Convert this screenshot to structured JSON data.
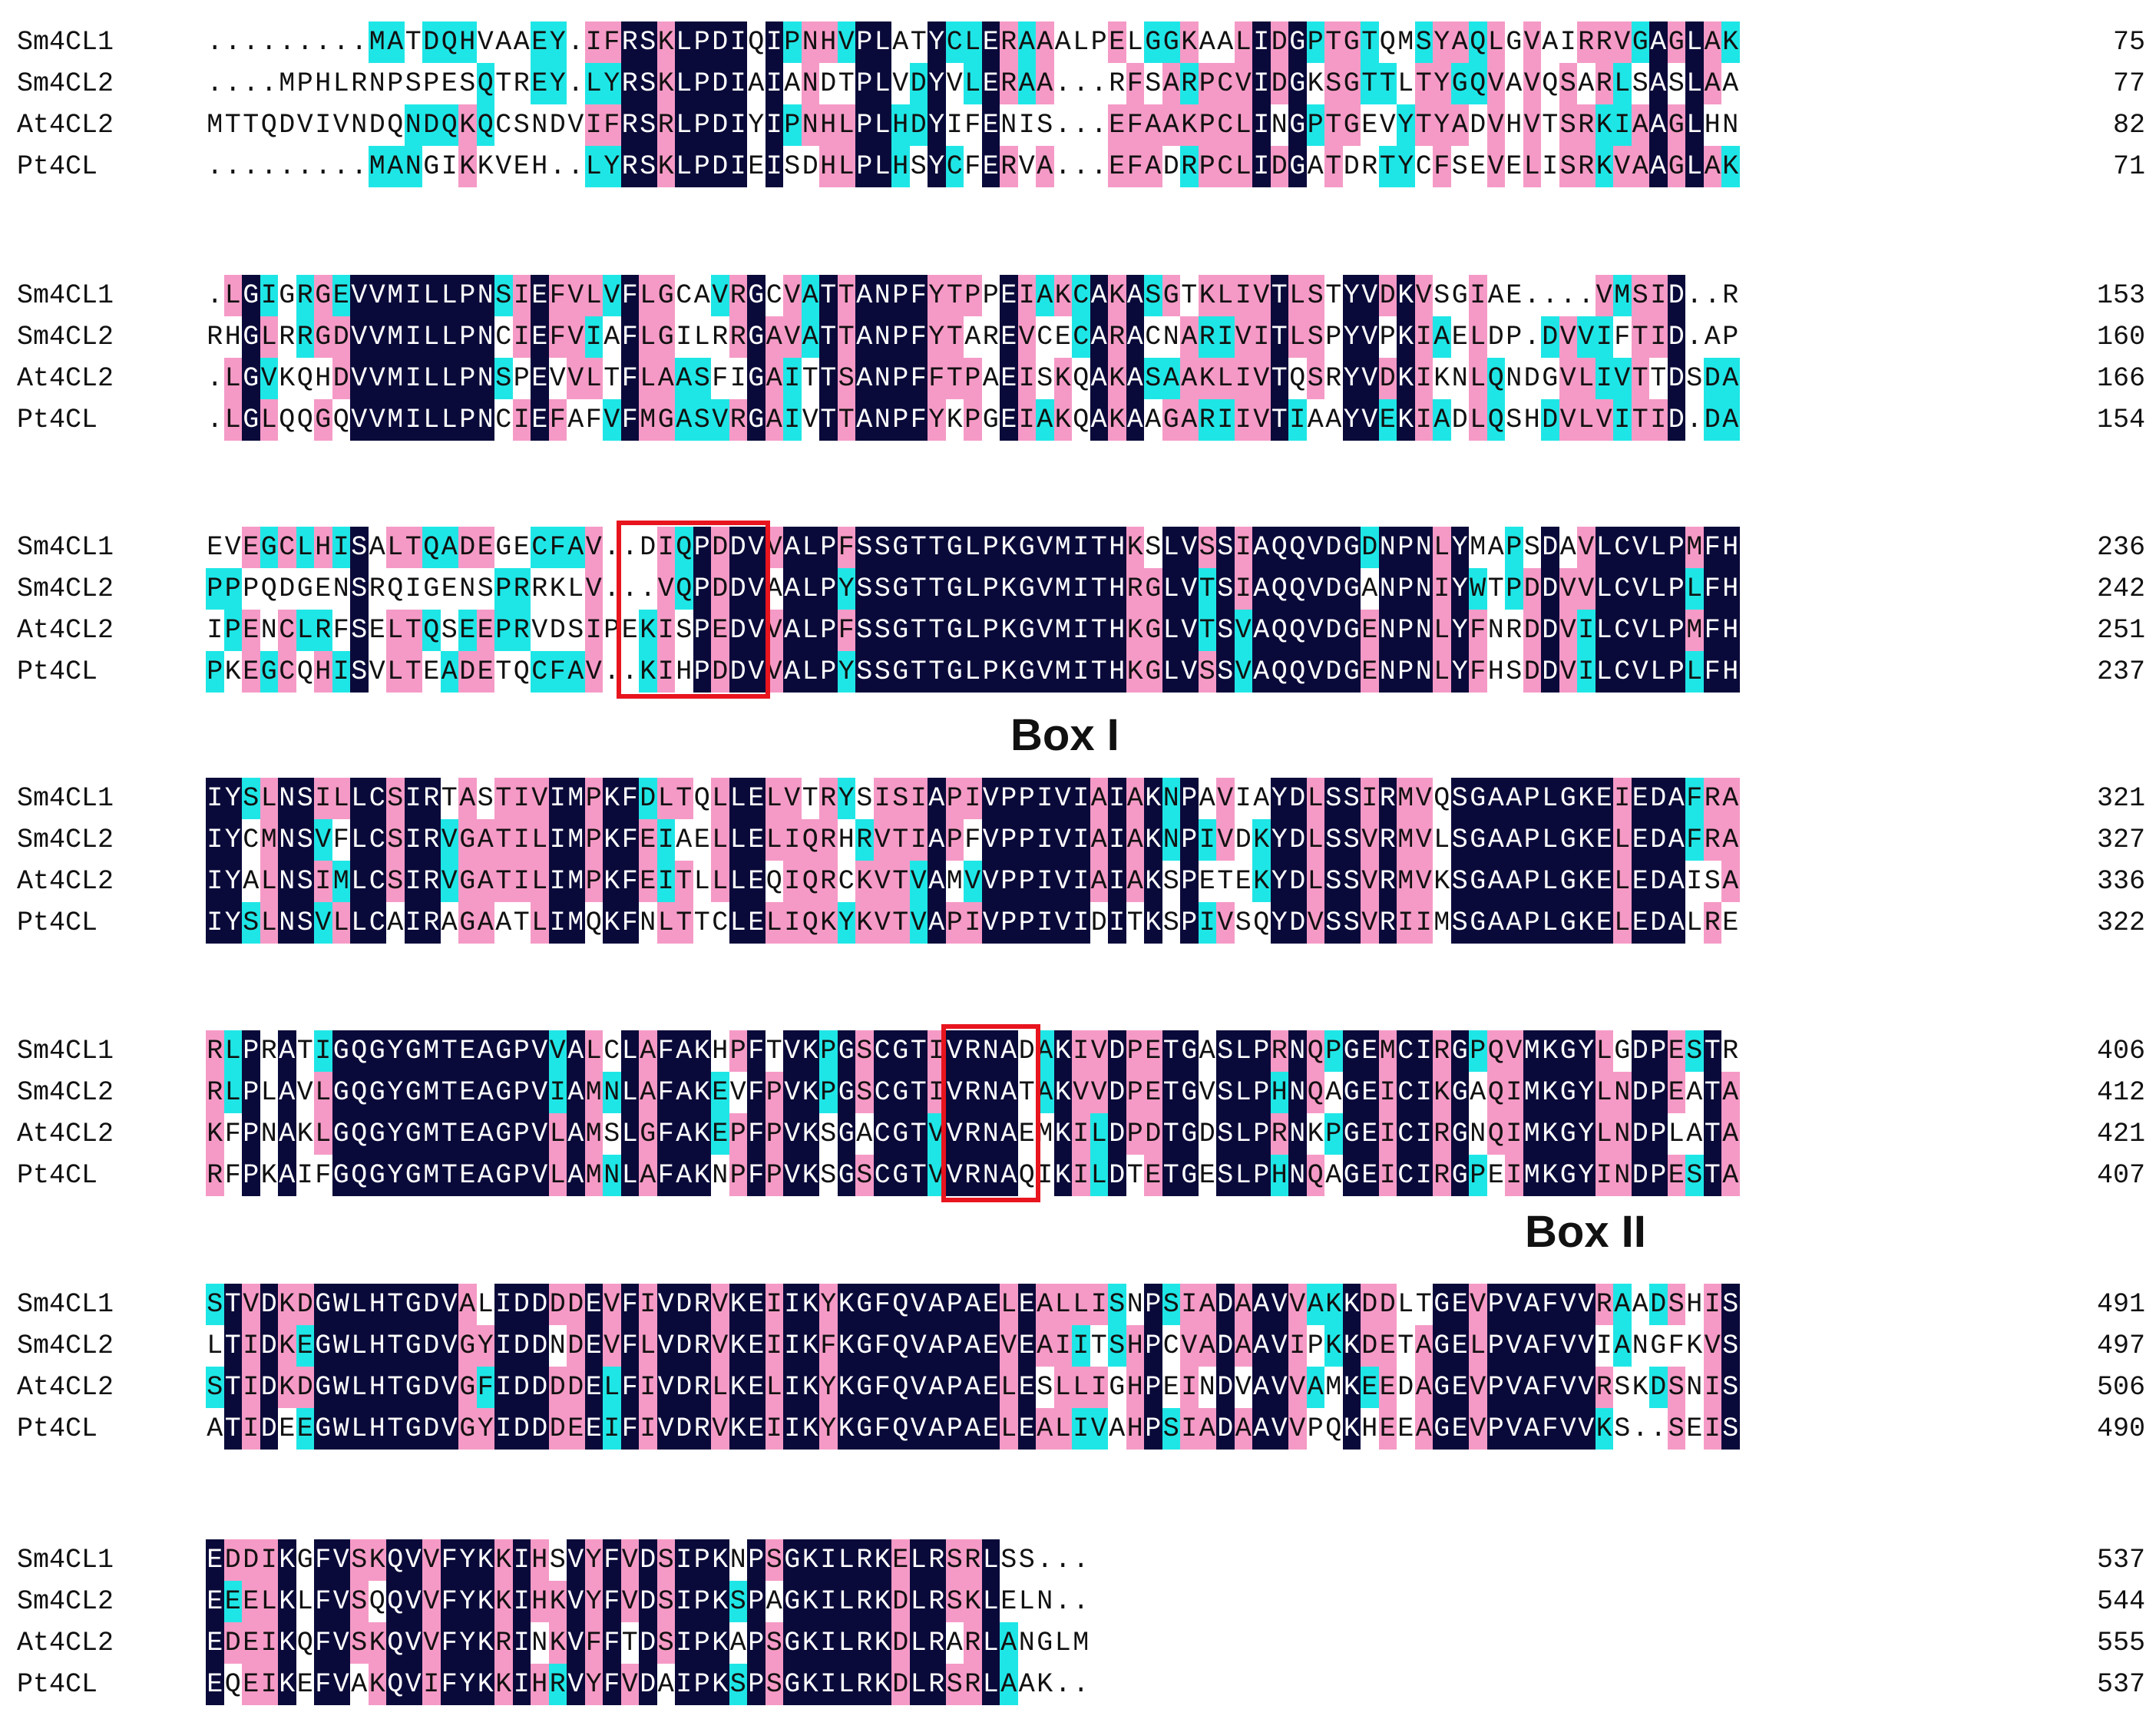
{
  "alignment": {
    "colors": {
      "identical": "#0a0a3a",
      "high_similarity": "#f59ac6",
      "similar": "#1fe6e6",
      "box_outline": "#e8141e"
    },
    "blocks": [
      {
        "rows": [
          {
            "name": "Sm4CL1",
            "seq": ".........MATDQHVAAEY.IFRSKLPDIQIPNHVPLATYCLERAAALPELGGKAALIDGPTGTQMSYAQLGVAIRRVGAGLAK",
            "end": "75"
          },
          {
            "name": "Sm4CL2",
            "seq": "....MPHLRNPSPESQTREY.LYRSKLPDIAIANDTPLVDYVLERAA...RFSARPCVIDGKSGTTLTYGQVAVQSARLSASLAA",
            "end": "77"
          },
          {
            "name": "At4CL2",
            "seq": "MTTQDVIVNDQNDQKQCSNDVIFRSRLPDIYIPNHLPLHDYIFENIS...EFAAKPCLINGPTGEVYTYADVHVTSRKIAAGLHN",
            "end": "82"
          },
          {
            "name": "Pt4CL",
            "seq": ".........MANGIKKVEH..LYRSKLPDIEISDHLPLHSYCFERVA...EFADRPCLIDGATDRTYCFSEVELISRKVAAGLAK",
            "end": "71"
          }
        ]
      },
      {
        "rows": [
          {
            "name": "Sm4CL1",
            "seq": ".LGIGRGEVVMILLPNSIEFVLVFLGCAVRGCVATTANPFYTPPEIAKCAKASGTKLIVTLSTYVDKVSGIAE....VMSID..R",
            "end": "153"
          },
          {
            "name": "Sm4CL2",
            "seq": "RHGLRRGDVVMILLPNCIEFVIAFLGILRRGAVATTANPFYTAREVCECARACNARIVITLSPYVPKIAELDP.DVVIFTID.AP",
            "end": "160"
          },
          {
            "name": "At4CL2",
            "seq": ".LGVKQHDVVMILLPNSPEVVLTFLAASFIGAITTSANPFFTPAEISKQAKASAAKLIVTQSRYVDKIKNLQNDGVLIVTTDSDA",
            "end": "166"
          },
          {
            "name": "Pt4CL",
            "seq": ".LGLQQGQVVMILLPNCIEFAFVFMGASVRGAIVTTANPFYKPGEIAKQAKAAGARIIVTIAAYVEKIADLQSHDVLVITID.DA",
            "end": "154"
          }
        ]
      },
      {
        "rows": [
          {
            "name": "Sm4CL1",
            "seq": "EVEGCLHISALTQADEGECFAV..DIQPDDVVALPFSSGTTGLPKGVMITHKSLVSSIAQQVDGDNPNLYMAPSDAVLCVLPMFH",
            "end": "236"
          },
          {
            "name": "Sm4CL2",
            "seq": "PPPQDGENSRQIGENSPRRKLV...VQPDDVAALPYSSGTTGLPKGVMITHRGLVTSIAQQVDGANPNIYWTPDDVVLCVLPLFH",
            "end": "242"
          },
          {
            "name": "At4CL2",
            "seq": "IPENCLRFSELTQSEEPRVDSIPEKISPEDVVALPFSSGTTGLPKGVMITHKGLVTSVAQQVDGENPNLYFNRDDVILCVLPMFH",
            "end": "251"
          },
          {
            "name": "Pt4CL",
            "seq": "PKEGCQHISVLTEADETQCFAV..KIHPDDVVALPYSSGTTGLPKGVMITHKGLVSSVAQQVDGENPNLYFHSDDVILCVLPLFH",
            "end": "237"
          }
        ],
        "box": {
          "label": "Box I"
        }
      },
      {
        "rows": [
          {
            "name": "Sm4CL1",
            "seq": "IYSLNSILLCSIRTASTIVIMPKFDLTQLLELVTRYSISIAPIVPPIVIAIAKNPAVIAYDLSSIRMVQSGAAPLGKEIEDAFRA",
            "end": "321"
          },
          {
            "name": "Sm4CL2",
            "seq": "IYCMNSVFLCSIRVGATILIMPKFEIAELLELIQRHRVTIAPFVPPIVIAIAKNPIVDKYDLSSVRMVLSGAAPLGKELEDAFRA",
            "end": "327"
          },
          {
            "name": "At4CL2",
            "seq": "IYALNSIMLCSIRVGATILIMPKFEITLLLEQIQRCKVTVAMVVPPIVIAIAKSPETEKYDLSSVRMVKSGAAPLGKELEDAISA",
            "end": "336"
          },
          {
            "name": "Pt4CL",
            "seq": "IYSLNSVLLCAIRAGAATLIMQKFNLTTCLELIQKYKVTVAPIVPPIVIDITKSPIVSQYDVSSVRIIMSGAAPLGKELEDALRE",
            "end": "322"
          }
        ]
      },
      {
        "rows": [
          {
            "name": "Sm4CL1",
            "seq": "RLPRATIGQGYGMTEAGPVVALCLAFAKHPFTVKPGSCGTIVRNADAKIVDPETGASLPRNQPGEMCIRGPQVMKGYLGDPESTR",
            "end": "406"
          },
          {
            "name": "Sm4CL2",
            "seq": "RLPLAVLGQGYGMTEAGPVIAMNLAFAKEVFPVKPGSCGTIVRNATAKVVDPETGVSLPHNQAGEICIKGAQIMKGYLNDPEATA",
            "end": "412"
          },
          {
            "name": "At4CL2",
            "seq": "KFPNAKLGQGYGMTEAGPVLAMSLGFAKEPFPVKSGACGTVVRNAEMKILDPDTGDSLPRNKPGEICIRGNQIMKGYLNDPLATA",
            "end": "421"
          },
          {
            "name": "Pt4CL",
            "seq": "RFPKAIFGQGYGMTEAGPVLAMNLAFAKNPFPVKSGSCGTVVRNAQIKILDTETGESLPHNQAGEICIRGPEIMKGYINDPESTA",
            "end": "407"
          }
        ],
        "box": {
          "label": "Box II"
        }
      },
      {
        "rows": [
          {
            "name": "Sm4CL1",
            "seq": "STVDKDGWLHTGDVALIDDDDEVFIVDRVKEIIKYKGFQVAPAELEALLISNPSIADAAVVAKKDDLTGEVPVAFVVRAADSHIS",
            "end": "491"
          },
          {
            "name": "Sm4CL2",
            "seq": "LTIDKEGWLHTGDVGYIDDNDEVFLVDRVKEIIKFKGFQVAPAEVEAIITSHPCVADAAVIPKKDETAGELPVAFVVIANGFKVS",
            "end": "497"
          },
          {
            "name": "At4CL2",
            "seq": "STIDKDGWLHTGDVGFIDDDDELFIVDRLKELIKYKGFQVAPAELESLLIGHPEINDVAVVAMKEEDAGEVPVAFVVRSKDSNIS",
            "end": "506"
          },
          {
            "name": "Pt4CL",
            "seq": "ATIDEEGWLHTGDVGYIDDDEEIFIVDRVKEIIKYKGFQVAPAELEALIVAHPSIADAAVVPQKHEEAGEVPVAFVVKS..SEIS",
            "end": "490"
          }
        ]
      },
      {
        "rows": [
          {
            "name": "Sm4CL1",
            "seq": "EDDIKGFVSKQVVFYKKIHSVYFVDSIPKNPSGKILRKELRSRLSS...",
            "end": "537"
          },
          {
            "name": "Sm4CL2",
            "seq": "EEELKLFVSQQVVFYKKIHKVYFVDSIPKSPAGKILRKDLRSKLELN..",
            "end": "544"
          },
          {
            "name": "At4CL2",
            "seq": "EDEIKQFVSKQVVFYKRINKVFFTDSIPKAPSGKILRKDLRARLANGLM",
            "end": "555"
          },
          {
            "name": "Pt4CL",
            "seq": "EQEIKEFVAKQVIFYKKIHRVYFVDAIPKSPSGKILRKDLRSRLAAK..",
            "end": "537"
          }
        ]
      }
    ]
  }
}
